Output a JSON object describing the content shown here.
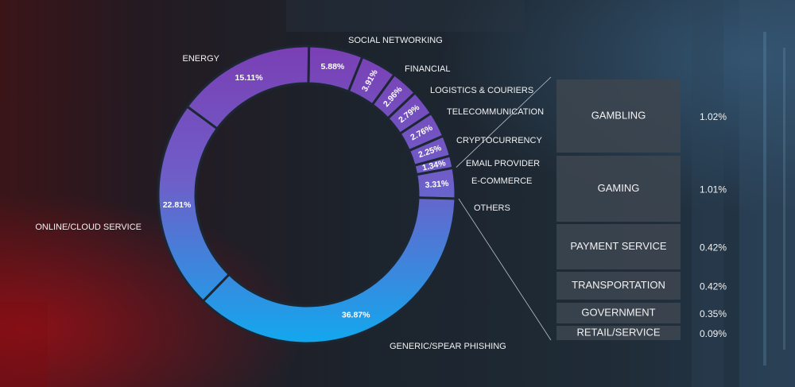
{
  "chart_data": {
    "type": "pie",
    "title": "",
    "colors": {
      "top": "#7a3fb4",
      "mid": "#6f5ec8",
      "bottom": "#12a8ee",
      "box": "#3c4650"
    },
    "slices": [
      {
        "label": "SOCIAL NETWORKING",
        "value": 5.88,
        "display": "5.88%"
      },
      {
        "label": "FINANCIAL",
        "value": 3.91,
        "display": "3.91%"
      },
      {
        "label": "LOGISTICS & COURIERS",
        "value": 2.96,
        "display": "2.96%"
      },
      {
        "label": "TELECOMMUNICATION",
        "value": 2.79,
        "display": "2.79%"
      },
      {
        "label": "CRYPTOCURRENCY",
        "value": 2.76,
        "display": "2.76%"
      },
      {
        "label": "EMAIL PROVIDER",
        "value": 2.25,
        "display": "2.25%"
      },
      {
        "label": "E-COMMERCE",
        "value": 1.34,
        "display": "1.34%"
      },
      {
        "label": "OTHERS",
        "value": 3.31,
        "display": "3.31%"
      },
      {
        "label": "GENERIC/SPEAR PHISHING",
        "value": 36.87,
        "display": "36.87%"
      },
      {
        "label": "ONLINE/CLOUD SERVICE",
        "value": 22.81,
        "display": "22.81%"
      },
      {
        "label": "ENERGY",
        "value": 15.11,
        "display": "15.11%"
      }
    ],
    "others_breakdown": [
      {
        "label": "GAMBLING",
        "value": 1.02,
        "display": "1.02%"
      },
      {
        "label": "GAMING",
        "value": 1.01,
        "display": "1.01%"
      },
      {
        "label": "PAYMENT SERVICE",
        "value": 0.42,
        "display": "0.42%"
      },
      {
        "label": "TRANSPORTATION",
        "value": 0.42,
        "display": "0.42%"
      },
      {
        "label": "GOVERNMENT",
        "value": 0.35,
        "display": "0.35%"
      },
      {
        "label": "RETAIL/SERVICE",
        "value": 0.09,
        "display": "0.09%"
      }
    ]
  }
}
